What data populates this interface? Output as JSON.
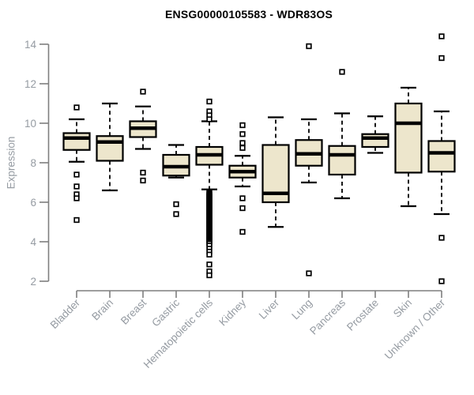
{
  "chart_data": {
    "type": "boxplot",
    "title": "ENSG00000105583 - WDR83OS",
    "ylabel": "Expression",
    "xlabel": "",
    "ylim": [
      2,
      14
    ],
    "y_ticks": [
      14,
      12,
      10,
      8,
      6,
      4,
      2
    ],
    "grid": false,
    "legend": "none",
    "box_fill": "#ede6cc",
    "box_stroke": "#000000",
    "median_color": "#000000",
    "outlier_fill": "#ffffff",
    "axis_color": "#7f7f7f",
    "label_color": "#959ba2",
    "series": [
      {
        "category": "Bladder",
        "whisker_low": 8.05,
        "q1": 8.65,
        "median": 9.25,
        "q3": 9.5,
        "whisker_high": 10.2,
        "outliers": [
          10.8,
          7.4,
          6.8,
          6.4,
          6.2,
          5.1
        ]
      },
      {
        "category": "Brain",
        "whisker_low": 6.6,
        "q1": 8.1,
        "median": 9.05,
        "q3": 9.35,
        "whisker_high": 11.0,
        "outliers": []
      },
      {
        "category": "Breast",
        "whisker_low": 8.7,
        "q1": 9.3,
        "median": 9.75,
        "q3": 10.1,
        "whisker_high": 10.85,
        "outliers": [
          11.6,
          7.5,
          7.1
        ]
      },
      {
        "category": "Gastric",
        "whisker_low": 7.25,
        "q1": 7.35,
        "median": 7.8,
        "q3": 8.4,
        "whisker_high": 8.9,
        "outliers": [
          5.9,
          5.4
        ]
      },
      {
        "category": "Hematopoietic cells",
        "whisker_low": 6.65,
        "q1": 7.9,
        "median": 8.4,
        "q3": 8.8,
        "whisker_high": 10.1,
        "outliers": [
          11.1,
          10.6,
          10.4,
          10.2,
          6.5,
          6.45,
          6.4,
          6.35,
          6.3,
          6.25,
          6.2,
          6.15,
          6.1,
          6.05,
          6.0,
          5.95,
          5.9,
          5.85,
          5.8,
          5.75,
          5.7,
          5.65,
          5.6,
          5.55,
          5.5,
          5.45,
          5.4,
          5.35,
          5.3,
          5.25,
          5.2,
          5.15,
          5.1,
          5.05,
          5.0,
          4.95,
          4.9,
          4.85,
          4.8,
          4.75,
          4.7,
          4.65,
          4.6,
          4.55,
          4.5,
          4.45,
          4.4,
          4.35,
          4.3,
          4.25,
          4.2,
          4.15,
          4.1,
          4.05,
          4.0,
          3.95,
          3.9,
          3.8,
          3.65,
          3.5,
          3.35,
          2.85,
          2.5,
          2.3
        ]
      },
      {
        "category": "Kidney",
        "whisker_low": 6.8,
        "q1": 7.25,
        "median": 7.55,
        "q3": 7.85,
        "whisker_high": 8.35,
        "outliers": [
          9.9,
          9.45,
          9.0,
          8.75,
          6.2,
          5.7,
          4.5
        ]
      },
      {
        "category": "Liver",
        "whisker_low": 4.75,
        "q1": 6.0,
        "median": 6.45,
        "q3": 8.9,
        "whisker_high": 10.3,
        "outliers": []
      },
      {
        "category": "Lung",
        "whisker_low": 7.0,
        "q1": 7.85,
        "median": 8.45,
        "q3": 9.15,
        "whisker_high": 10.2,
        "outliers": [
          13.9,
          2.4
        ]
      },
      {
        "category": "Pancreas",
        "whisker_low": 6.2,
        "q1": 7.4,
        "median": 8.4,
        "q3": 8.85,
        "whisker_high": 10.5,
        "outliers": [
          12.6
        ]
      },
      {
        "category": "Prostate",
        "whisker_low": 8.5,
        "q1": 8.8,
        "median": 9.25,
        "q3": 9.45,
        "whisker_high": 10.35,
        "outliers": []
      },
      {
        "category": "Skin",
        "whisker_low": 5.8,
        "q1": 7.5,
        "median": 10.0,
        "q3": 11.0,
        "whisker_high": 11.8,
        "outliers": []
      },
      {
        "category": "Unknown / Other",
        "whisker_low": 5.4,
        "q1": 7.55,
        "median": 8.5,
        "q3": 9.1,
        "whisker_high": 10.6,
        "outliers": [
          14.4,
          13.3,
          4.2,
          2.0
        ]
      }
    ]
  }
}
